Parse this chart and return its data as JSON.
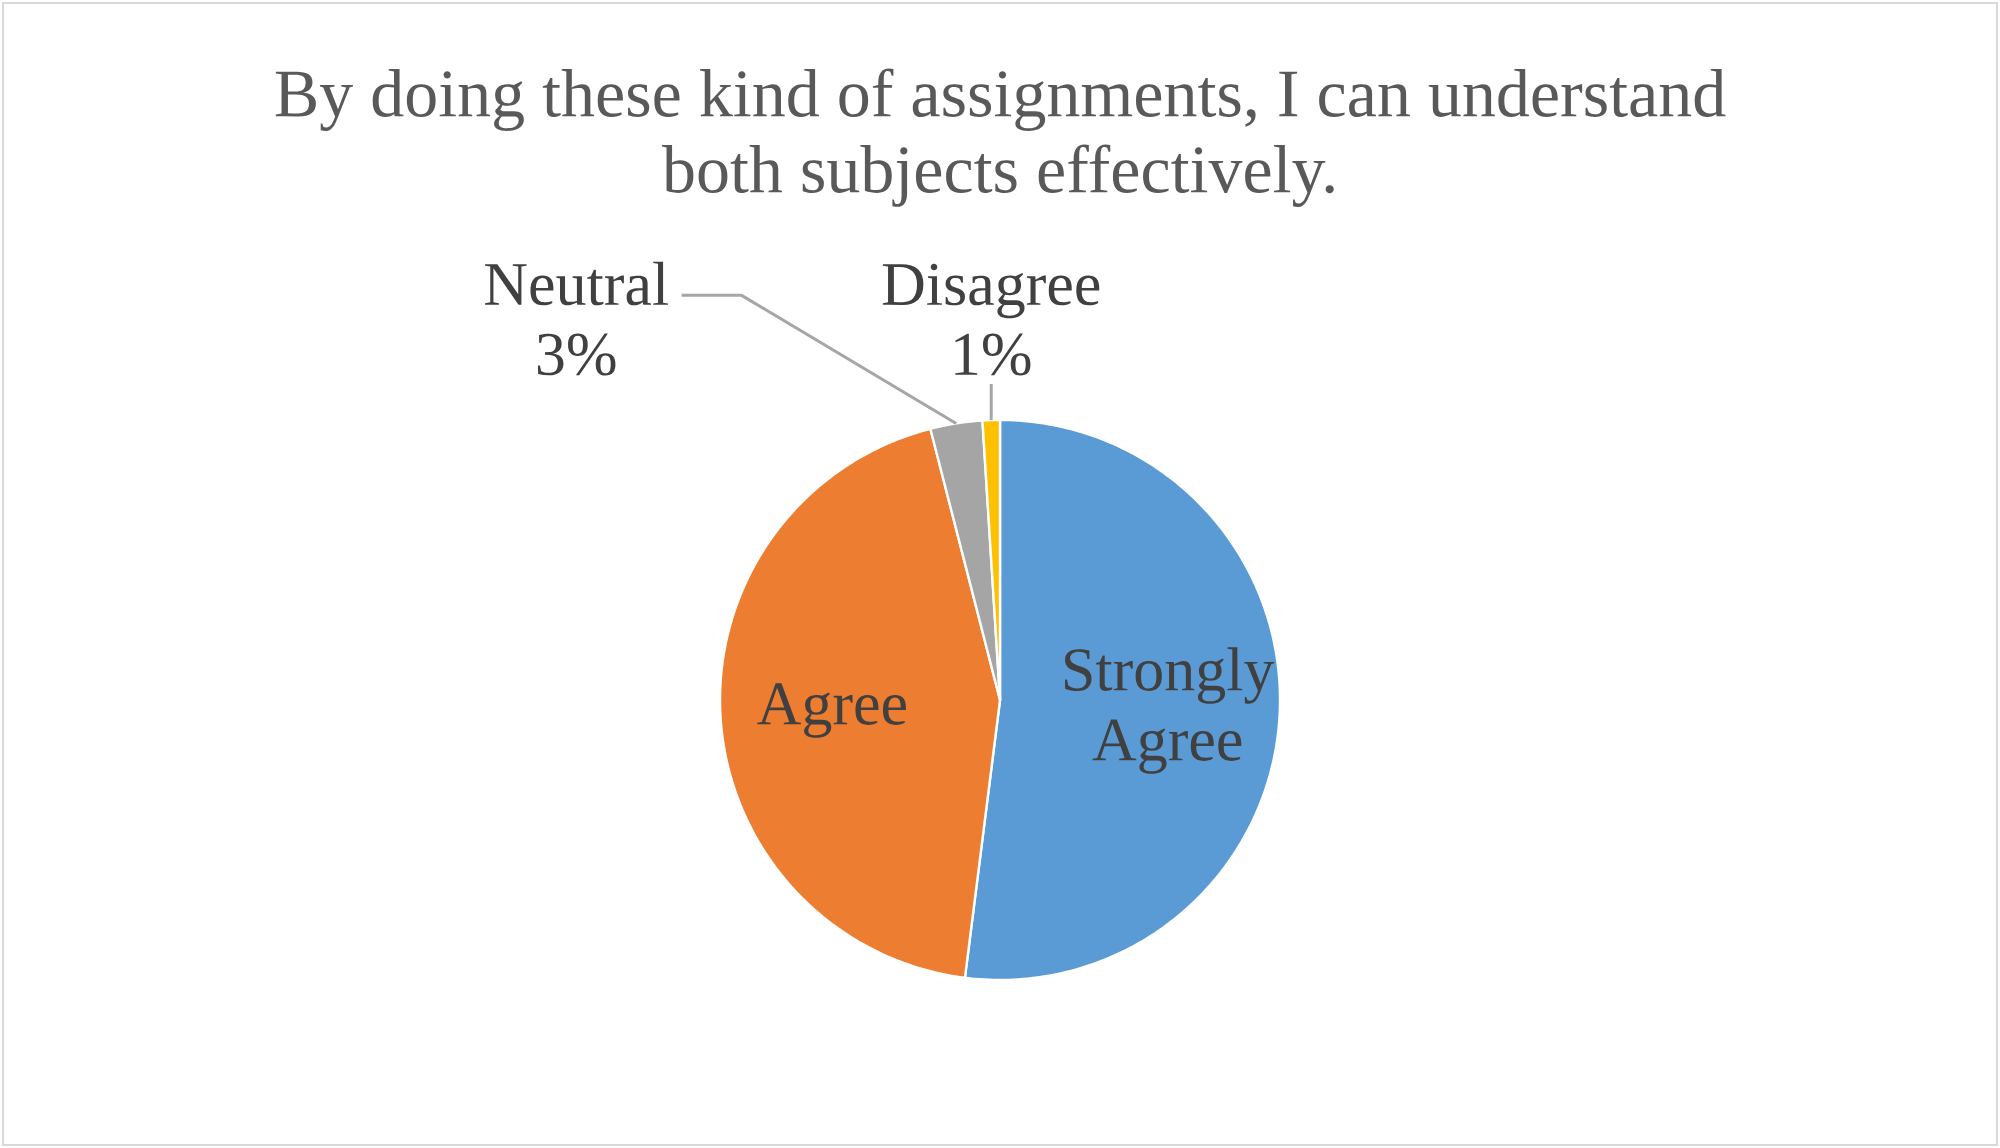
{
  "chart_data": {
    "type": "pie",
    "title": "By doing these kind of assignments, I can understand both subjects effectively.",
    "categories": [
      "Strongly Agree",
      "Agree",
      "Neutral",
      "Disagree"
    ],
    "values": [
      52,
      44,
      3,
      1
    ],
    "colors": [
      "#5b9bd5",
      "#ed7d31",
      "#a5a5a5",
      "#ffc000"
    ],
    "value_labels": [
      null,
      null,
      "3%",
      "1%"
    ]
  }
}
